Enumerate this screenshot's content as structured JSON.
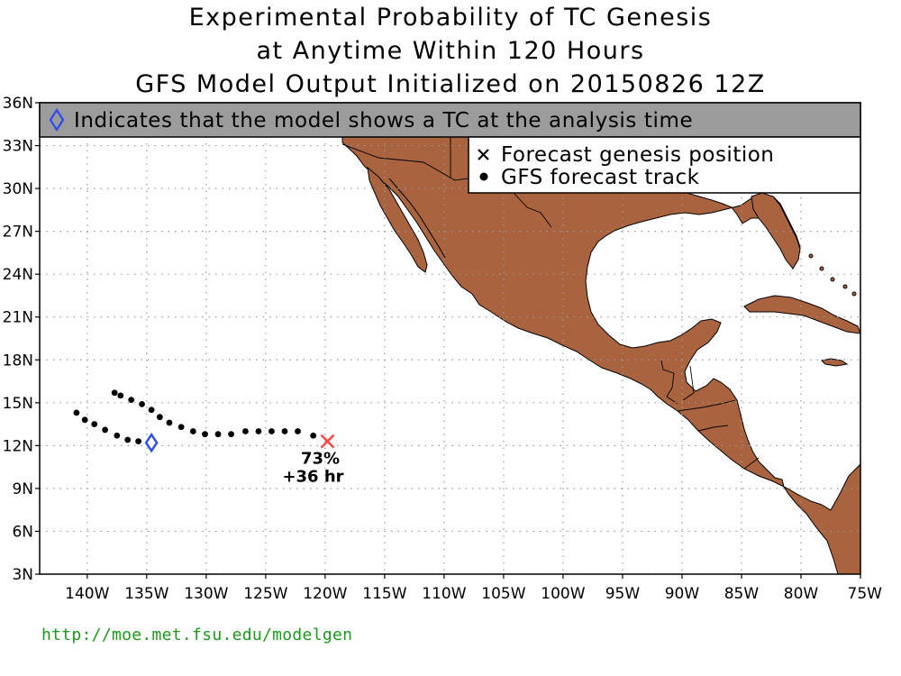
{
  "title": {
    "line1": "Experimental Probability of TC Genesis",
    "line2": "at Anytime Within 120 Hours",
    "line3": "GFS Model Output Initialized on 20150826 12Z"
  },
  "banner": {
    "text": "Indicates that the model shows a TC at the analysis time",
    "icon": "diamond-icon"
  },
  "legend": {
    "items": [
      {
        "symbol": "x-mark-icon",
        "label": "Forecast genesis position"
      },
      {
        "symbol": "dot-icon",
        "label": "GFS forecast track"
      }
    ]
  },
  "axes": {
    "lat_ticks": [
      "36N",
      "33N",
      "30N",
      "27N",
      "24N",
      "21N",
      "18N",
      "15N",
      "12N",
      "9N",
      "6N",
      "3N"
    ],
    "lon_ticks": [
      "140W",
      "135W",
      "130W",
      "125W",
      "120W",
      "115W",
      "110W",
      "105W",
      "100W",
      "95W",
      "90W",
      "85W",
      "80W",
      "75W"
    ],
    "lat_range": [
      3,
      36
    ],
    "lon_range": [
      -144,
      -75
    ],
    "grid": "dotted"
  },
  "genesis": {
    "probability": "73%",
    "lead_time": "+36 hr",
    "lon": -119.8,
    "lat": 12.3,
    "marker_color": "#f04a4a"
  },
  "analysis_tc": {
    "lon": -134.6,
    "lat": 12.2,
    "marker_color": "#2b4bf0"
  },
  "track": [
    [
      -121.0,
      12.7
    ],
    [
      -122.3,
      13.0
    ],
    [
      -123.4,
      13.0
    ],
    [
      -124.5,
      13.0
    ],
    [
      -125.6,
      13.0
    ],
    [
      -126.7,
      13.0
    ],
    [
      -127.9,
      12.8
    ],
    [
      -129.0,
      12.8
    ],
    [
      -130.1,
      12.8
    ],
    [
      -131.1,
      13.0
    ],
    [
      -132.1,
      13.3
    ],
    [
      -133.1,
      13.6
    ],
    [
      -133.9,
      14.0
    ],
    [
      -134.6,
      14.5
    ],
    [
      -135.4,
      14.9
    ],
    [
      -136.3,
      15.2
    ],
    [
      -137.2,
      15.5
    ],
    [
      -137.7,
      15.7
    ],
    [
      -135.7,
      12.3
    ],
    [
      -136.6,
      12.4
    ],
    [
      -137.5,
      12.7
    ],
    [
      -138.5,
      13.1
    ],
    [
      -139.4,
      13.5
    ],
    [
      -140.2,
      13.8
    ],
    [
      -140.9,
      14.3
    ]
  ],
  "colors": {
    "land": "#a9643f",
    "banner_bg": "#9c9c9c",
    "url": "#1a9a1a"
  },
  "footer": {
    "url": "http://moe.met.fsu.edu/modelgen"
  }
}
